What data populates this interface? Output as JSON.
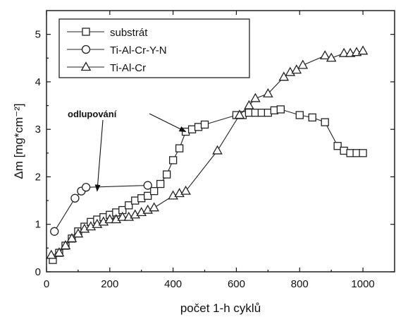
{
  "chart_data": {
    "type": "line",
    "xlabel": "počet 1-h cyklů",
    "ylabel": "Δm  [mg*cm⁻²]",
    "xlim": [
      0,
      1100
    ],
    "ylim": [
      0,
      5.5
    ],
    "xticks": [
      0,
      200,
      400,
      600,
      800,
      1000
    ],
    "yticks": [
      0,
      1,
      2,
      3,
      4,
      5
    ],
    "legend_position": "top-left",
    "series": [
      {
        "name": "substrát",
        "marker": "square",
        "x": [
          20,
          40,
          60,
          80,
          100,
          120,
          140,
          160,
          180,
          200,
          220,
          240,
          260,
          280,
          300,
          320,
          340,
          360,
          380,
          400,
          420,
          440,
          460,
          480,
          500,
          600,
          620,
          640,
          660,
          680,
          700,
          720,
          740,
          800,
          840,
          880,
          920,
          940,
          960,
          980,
          1000
        ],
        "y": [
          0.25,
          0.4,
          0.55,
          0.7,
          0.85,
          0.95,
          1.05,
          1.1,
          1.15,
          1.2,
          1.25,
          1.3,
          1.4,
          1.5,
          1.55,
          1.6,
          1.7,
          1.85,
          2.05,
          2.35,
          2.6,
          2.95,
          3.0,
          3.05,
          3.1,
          3.3,
          3.3,
          3.35,
          3.35,
          3.35,
          3.35,
          3.4,
          3.42,
          3.3,
          3.25,
          3.15,
          2.65,
          2.55,
          2.5,
          2.5,
          2.5
        ]
      },
      {
        "name": "Ti-Al-Cr-Y-N",
        "marker": "circle",
        "x": [
          25,
          90,
          110,
          125,
          320
        ],
        "y": [
          0.85,
          1.55,
          1.7,
          1.78,
          1.82
        ]
      },
      {
        "name": "Ti-Al-Cr",
        "marker": "triangle",
        "x": [
          15,
          40,
          60,
          80,
          100,
          120,
          140,
          160,
          180,
          200,
          220,
          240,
          260,
          280,
          300,
          320,
          340,
          400,
          420,
          440,
          540,
          610,
          640,
          660,
          700,
          750,
          770,
          790,
          810,
          880,
          900,
          940,
          960,
          980,
          1000
        ],
        "y": [
          0.35,
          0.4,
          0.55,
          0.7,
          0.8,
          0.9,
          0.95,
          1.0,
          1.05,
          1.1,
          1.1,
          1.15,
          1.15,
          1.2,
          1.25,
          1.3,
          1.35,
          1.6,
          1.65,
          1.7,
          2.55,
          3.3,
          3.5,
          3.65,
          3.75,
          4.1,
          4.2,
          4.25,
          4.35,
          4.55,
          4.5,
          4.6,
          4.6,
          4.62,
          4.65
        ]
      }
    ],
    "annotation": {
      "text": "odlupování",
      "arrows_to": [
        [
          160,
          1.7
        ],
        [
          440,
          2.95
        ]
      ]
    }
  }
}
